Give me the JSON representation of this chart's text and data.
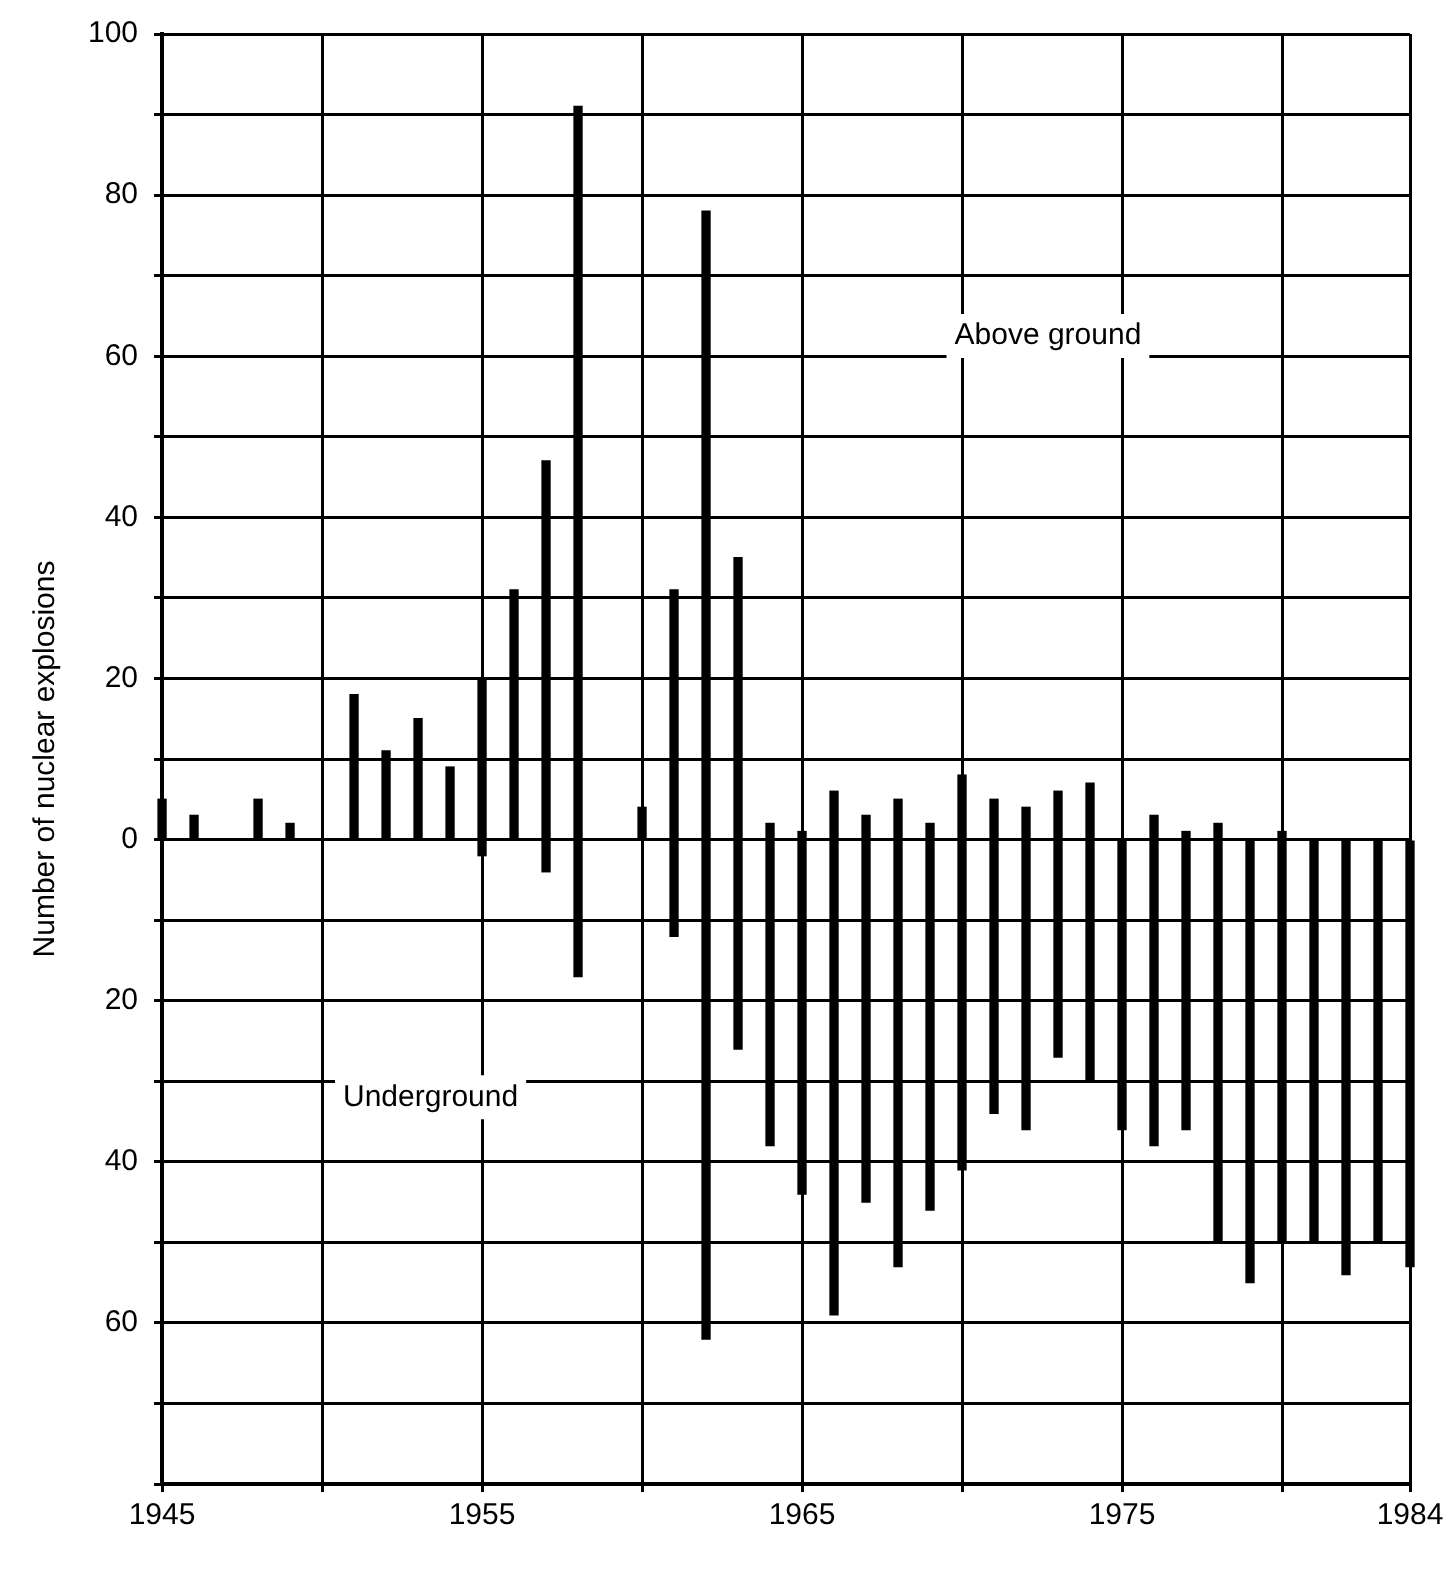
{
  "chart_data": {
    "type": "bar",
    "ylabel": "Number of nuclear explosions",
    "x": [
      1945,
      1946,
      1947,
      1948,
      1949,
      1950,
      1951,
      1952,
      1953,
      1954,
      1955,
      1956,
      1957,
      1958,
      1959,
      1960,
      1961,
      1962,
      1963,
      1964,
      1965,
      1966,
      1967,
      1968,
      1969,
      1970,
      1971,
      1972,
      1973,
      1974,
      1975,
      1976,
      1977,
      1978,
      1979,
      1980,
      1981,
      1982,
      1983,
      1984
    ],
    "series": [
      {
        "color": "#000000",
        "values": [
          5,
          3,
          null,
          5,
          2,
          null,
          18,
          11,
          15,
          9,
          20,
          31,
          47,
          91,
          null,
          4,
          31,
          78,
          35,
          2,
          1,
          6,
          3,
          5,
          2,
          8,
          5,
          4,
          6,
          7,
          null,
          3,
          1,
          2,
          null,
          1,
          null,
          null,
          null,
          null
        ]
      },
      {
        "color": "#000000",
        "values": [
          null,
          null,
          null,
          null,
          null,
          null,
          null,
          null,
          null,
          null,
          -2,
          null,
          -4,
          -17,
          null,
          null,
          -12,
          -62,
          -26,
          -38,
          -44,
          -59,
          -45,
          -53,
          -46,
          -41,
          -34,
          -36,
          -27,
          -30,
          -36,
          -38,
          -36,
          -50,
          -55,
          -50,
          -50,
          -54,
          -50,
          -53
        ]
      }
    ],
    "xlim": [
      1945,
      1984
    ],
    "xticks": [
      1945,
      {
        "value": 1950,
        "label": null
      },
      1955,
      {
        "value": 1960,
        "label": null
      },
      1965,
      {
        "value": 1970,
        "label": null
      },
      1975,
      {
        "value": 1980,
        "label": null
      },
      1984
    ],
    "ylim": [
      -80,
      100
    ],
    "yticks": [
      100,
      {
        "value": 90,
        "label": null
      },
      80,
      {
        "value": 70,
        "label": null
      },
      60,
      {
        "value": 50,
        "label": null
      },
      40,
      {
        "value": 30,
        "label": null
      },
      20,
      {
        "value": 10,
        "label": null
      },
      0,
      {
        "value": -10,
        "label": null
      },
      {
        "value": -20,
        "label": "20"
      },
      {
        "value": -30,
        "label": null
      },
      {
        "value": -40,
        "label": "40"
      },
      {
        "value": -50,
        "label": null
      },
      {
        "value": -60,
        "label": "60"
      },
      {
        "value": -70,
        "label": null
      },
      {
        "value": -80,
        "label": null
      }
    ],
    "annotations": [
      "Above ground",
      "Underground"
    ],
    "stacked": true,
    "grid": true,
    "legend": false
  }
}
